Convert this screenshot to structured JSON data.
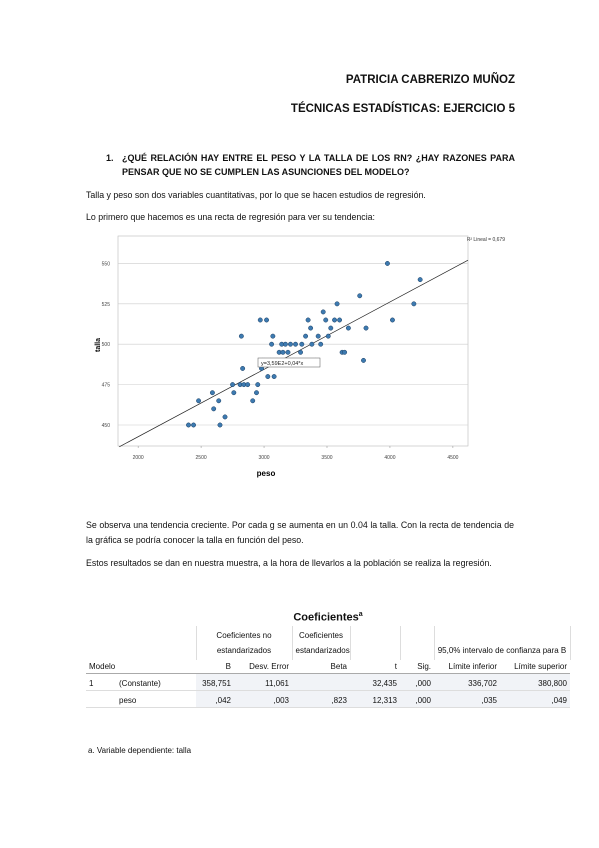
{
  "header": {
    "author": "PATRICIA CABRERIZO MUÑOZ",
    "subject": "TÉCNICAS ESTADÍSTICAS: EJERCICIO 5"
  },
  "question": {
    "number": "1.",
    "text": "¿QUÉ RELACIÓN HAY ENTRE EL PESO Y LA TALLA DE LOS RN? ¿HAY RAZONES PARA PENSAR QUE NO SE CUMPLEN LAS ASUNCIONES DEL MODELO?"
  },
  "paragraphs": [
    "Talla y peso son dos variables cuantitativas, por lo que se hacen estudios de regresión.",
    "Lo primero que hacemos es una recta de regresión para ver su tendencia:"
  ],
  "chart_data": {
    "type": "scatter",
    "x_label": "peso",
    "y_label": "talla",
    "annotation": "R² Lineal = 0,679",
    "equation": "y=3,59E2+0,04*x",
    "xlim": [
      1840,
      4620
    ],
    "ylim": [
      437,
      567
    ],
    "xticks": [
      2000,
      2500,
      3000,
      3500,
      4000,
      4500
    ],
    "yticks": [
      450,
      475,
      500,
      525,
      550
    ],
    "grid": true,
    "color": "#3d7ab0",
    "x": [
      2400,
      2440,
      2480,
      2590,
      2600,
      2640,
      2650,
      2690,
      2750,
      2760,
      2810,
      2820,
      2840,
      2830,
      2870,
      2910,
      2940,
      2950,
      2970,
      2980,
      2990,
      3000,
      3020,
      3030,
      3050,
      3060,
      3070,
      3080,
      3100,
      3110,
      3120,
      3140,
      3150,
      3170,
      3190,
      3210,
      3230,
      3250,
      3290,
      3300,
      3330,
      3350,
      3370,
      3380,
      3410,
      3430,
      3450,
      3470,
      3490,
      3510,
      3530,
      3560,
      3580,
      3600,
      3620,
      3640,
      3670,
      3760,
      3790,
      3810,
      3980,
      4020,
      4190,
      4240
    ],
    "values": [
      450,
      450,
      465,
      470,
      460,
      465,
      450,
      455,
      475,
      470,
      475,
      505,
      475,
      485,
      475,
      465,
      470,
      475,
      515,
      485,
      490,
      490,
      515,
      480,
      490,
      500,
      505,
      480,
      490,
      490,
      495,
      500,
      495,
      500,
      495,
      500,
      490,
      500,
      495,
      500,
      505,
      515,
      510,
      500,
      490,
      505,
      500,
      520,
      515,
      505,
      510,
      515,
      525,
      515,
      495,
      495,
      510,
      530,
      490,
      510,
      550,
      515,
      525,
      540
    ],
    "fit_line": {
      "x": [
        1850,
        4620
      ],
      "y": [
        436.5,
        552
      ]
    }
  },
  "paragraphs2": [
    "Se observa una tendencia creciente. Por cada g se aumenta en un 0.04 la talla. Con la recta de tendencia de la gráfica se podría conocer la talla en función del peso.",
    "Estos resultados se dan en nuestra muestra, a la hora de llevarlos a la población se realiza la regresión."
  ],
  "table": {
    "title": "Coeficientes",
    "title_note": "a",
    "groups": [
      "Coeficientes no estandarizados",
      "Coeficientes estandarizados",
      "95,0% intervalo de confianza para B"
    ],
    "columns": [
      "Modelo",
      "B",
      "Desv. Error",
      "Beta",
      "t",
      "Sig.",
      "Límite inferior",
      "Límite superior"
    ],
    "rows": [
      [
        "1",
        "(Constante)",
        "358,751",
        "11,061",
        null,
        "32,435",
        ",000",
        "336,702",
        "380,800"
      ],
      [
        null,
        "peso",
        ",042",
        ",003",
        ",823",
        "12,313",
        ",000",
        ",035",
        ",049"
      ]
    ],
    "footnote": "a. Variable dependiente: talla"
  }
}
